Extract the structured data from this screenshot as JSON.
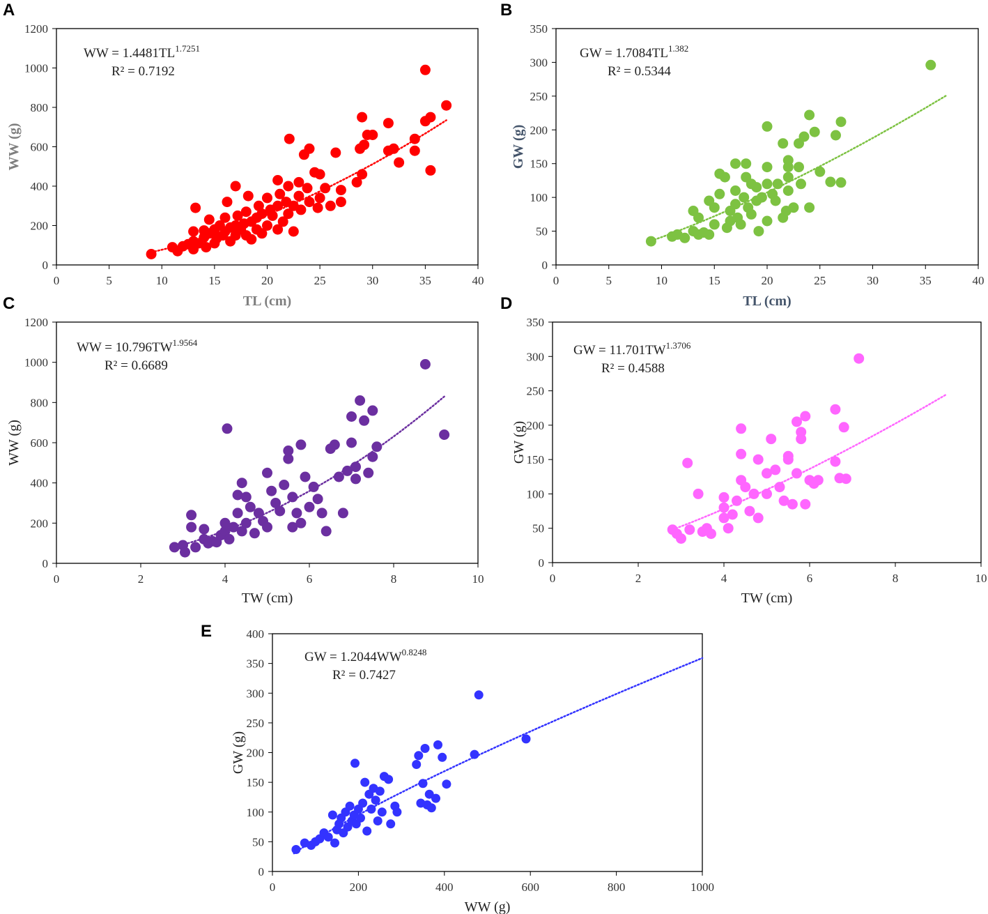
{
  "figure": {
    "panels": [
      "A",
      "B",
      "C",
      "D",
      "E"
    ]
  },
  "chart_data": [
    {
      "panel": "A",
      "type": "scatter",
      "color": "#ff0000",
      "title": "",
      "xlabel": "TL (cm)",
      "ylabel": "WW (g)",
      "xlim": [
        0,
        40
      ],
      "ylim": [
        0,
        1200
      ],
      "xticks": [
        0,
        5,
        10,
        15,
        20,
        25,
        30,
        35,
        40
      ],
      "yticks": [
        0,
        200,
        400,
        600,
        800,
        1000,
        1200
      ],
      "equation": {
        "lhs": "WW = 1.4481TL",
        "exp": "1.7251",
        "r2": "R² = 0.7192"
      },
      "fit": {
        "form": "power",
        "a": 1.4481,
        "b": 1.7251,
        "range": [
          9,
          37
        ]
      },
      "points": [
        [
          9,
          55
        ],
        [
          11,
          90
        ],
        [
          11.5,
          70
        ],
        [
          12,
          95
        ],
        [
          12.5,
          105
        ],
        [
          13,
          80
        ],
        [
          13,
          120
        ],
        [
          13,
          170
        ],
        [
          13.2,
          290
        ],
        [
          13.5,
          110
        ],
        [
          14,
          140
        ],
        [
          14,
          175
        ],
        [
          14.2,
          90
        ],
        [
          14.5,
          160
        ],
        [
          14.5,
          230
        ],
        [
          15,
          110
        ],
        [
          15,
          180
        ],
        [
          15.2,
          135
        ],
        [
          15.5,
          200
        ],
        [
          15.8,
          150
        ],
        [
          16,
          170
        ],
        [
          16,
          240
        ],
        [
          16.2,
          320
        ],
        [
          16.5,
          190
        ],
        [
          16.5,
          120
        ],
        [
          17,
          150
        ],
        [
          17,
          200
        ],
        [
          17,
          400
        ],
        [
          17.2,
          250
        ],
        [
          17.5,
          180
        ],
        [
          17.8,
          210
        ],
        [
          18,
          150
        ],
        [
          18,
          270
        ],
        [
          18.2,
          350
        ],
        [
          18.5,
          220
        ],
        [
          18.5,
          130
        ],
        [
          19,
          240
        ],
        [
          19,
          180
        ],
        [
          19.2,
          300
        ],
        [
          19.5,
          260
        ],
        [
          19.5,
          160
        ],
        [
          20,
          200
        ],
        [
          20,
          340
        ],
        [
          20.3,
          280
        ],
        [
          20.5,
          250
        ],
        [
          21,
          180
        ],
        [
          21,
          300
        ],
        [
          21,
          430
        ],
        [
          21.2,
          360
        ],
        [
          21.5,
          220
        ],
        [
          21.8,
          320
        ],
        [
          22,
          260
        ],
        [
          22,
          400
        ],
        [
          22.1,
          640
        ],
        [
          22.5,
          300
        ],
        [
          22.5,
          170
        ],
        [
          23,
          350
        ],
        [
          23,
          420
        ],
        [
          23.2,
          280
        ],
        [
          23.5,
          560
        ],
        [
          23.8,
          390
        ],
        [
          24,
          320
        ],
        [
          24,
          590
        ],
        [
          24.5,
          470
        ],
        [
          24.8,
          290
        ],
        [
          25,
          340
        ],
        [
          25,
          460
        ],
        [
          25.5,
          390
        ],
        [
          26,
          300
        ],
        [
          26.5,
          570
        ],
        [
          27,
          320
        ],
        [
          27,
          380
        ],
        [
          28.5,
          420
        ],
        [
          28.8,
          590
        ],
        [
          29,
          460
        ],
        [
          29,
          750
        ],
        [
          29.2,
          610
        ],
        [
          29.5,
          660
        ],
        [
          30,
          660
        ],
        [
          31.5,
          720
        ],
        [
          31.5,
          580
        ],
        [
          32,
          590
        ],
        [
          32.5,
          520
        ],
        [
          34,
          640
        ],
        [
          34,
          580
        ],
        [
          35,
          730
        ],
        [
          35.5,
          750
        ],
        [
          35.5,
          480
        ],
        [
          35,
          990
        ],
        [
          37,
          810
        ]
      ]
    },
    {
      "panel": "B",
      "type": "scatter",
      "color": "#7dc242",
      "title": "",
      "xlabel": "TL (cm)",
      "ylabel": "GW (g)",
      "xlim": [
        0,
        40
      ],
      "ylim": [
        0,
        350
      ],
      "xticks": [
        0,
        5,
        10,
        15,
        20,
        25,
        30,
        35,
        40
      ],
      "yticks": [
        0,
        50,
        100,
        150,
        200,
        250,
        300,
        350
      ],
      "equation": {
        "lhs": "GW = 1.7084TL",
        "exp": "1.382",
        "r2": "R² = 0.5344"
      },
      "fit": {
        "form": "power",
        "a": 1.7084,
        "b": 1.382,
        "range": [
          9,
          37
        ]
      },
      "points": [
        [
          9,
          35
        ],
        [
          11,
          42
        ],
        [
          11.5,
          45
        ],
        [
          12.2,
          40
        ],
        [
          13,
          50
        ],
        [
          13,
          80
        ],
        [
          13.5,
          70
        ],
        [
          13.5,
          45
        ],
        [
          14,
          48
        ],
        [
          14.5,
          95
        ],
        [
          14.5,
          45
        ],
        [
          15,
          60
        ],
        [
          15,
          85
        ],
        [
          15.5,
          105
        ],
        [
          15.5,
          135
        ],
        [
          16,
          130
        ],
        [
          16.2,
          55
        ],
        [
          16.5,
          80
        ],
        [
          16.5,
          65
        ],
        [
          17,
          150
        ],
        [
          17,
          110
        ],
        [
          17,
          90
        ],
        [
          17.2,
          70
        ],
        [
          17.5,
          60
        ],
        [
          17.8,
          100
        ],
        [
          18,
          150
        ],
        [
          18,
          130
        ],
        [
          18.2,
          85
        ],
        [
          18.5,
          120
        ],
        [
          18.5,
          75
        ],
        [
          19,
          115
        ],
        [
          19,
          95
        ],
        [
          19.2,
          50
        ],
        [
          19.5,
          100
        ],
        [
          20,
          205
        ],
        [
          20,
          145
        ],
        [
          20,
          120
        ],
        [
          20,
          65
        ],
        [
          20.5,
          105
        ],
        [
          20.8,
          95
        ],
        [
          21,
          120
        ],
        [
          21.5,
          180
        ],
        [
          21.5,
          70
        ],
        [
          21.8,
          80
        ],
        [
          22,
          155
        ],
        [
          22,
          145
        ],
        [
          22,
          130
        ],
        [
          22,
          110
        ],
        [
          22.5,
          85
        ],
        [
          23,
          145
        ],
        [
          23,
          180
        ],
        [
          23.2,
          120
        ],
        [
          23.5,
          190
        ],
        [
          24,
          222
        ],
        [
          24,
          85
        ],
        [
          24.5,
          197
        ],
        [
          25,
          138
        ],
        [
          26,
          123
        ],
        [
          26.5,
          192
        ],
        [
          27,
          212
        ],
        [
          27,
          122
        ],
        [
          35.5,
          296
        ]
      ]
    },
    {
      "panel": "C",
      "type": "scatter",
      "color": "#6b2fa0",
      "title": "",
      "xlabel": "TW (cm)",
      "ylabel": "WW (g)",
      "xlim": [
        0,
        10
      ],
      "ylim": [
        0,
        1200
      ],
      "xticks": [
        0,
        2,
        4,
        6,
        8,
        10
      ],
      "yticks": [
        0,
        200,
        400,
        600,
        800,
        1000,
        1200
      ],
      "equation": {
        "lhs": "WW = 10.796TW",
        "exp": "1.9564",
        "r2": "R² = 0.6689"
      },
      "fit": {
        "form": "power",
        "a": 10.796,
        "b": 1.9564,
        "range": [
          2.8,
          9.2
        ]
      },
      "points": [
        [
          2.8,
          80
        ],
        [
          3,
          90
        ],
        [
          3.05,
          55
        ],
        [
          3.2,
          240
        ],
        [
          3.2,
          180
        ],
        [
          3.3,
          80
        ],
        [
          3.5,
          120
        ],
        [
          3.5,
          170
        ],
        [
          3.6,
          100
        ],
        [
          3.7,
          110
        ],
        [
          3.8,
          105
        ],
        [
          3.9,
          140
        ],
        [
          4,
          160
        ],
        [
          4,
          200
        ],
        [
          4.05,
          670
        ],
        [
          4.1,
          120
        ],
        [
          4.2,
          180
        ],
        [
          4.3,
          340
        ],
        [
          4.3,
          250
        ],
        [
          4.4,
          400
        ],
        [
          4.4,
          160
        ],
        [
          4.5,
          200
        ],
        [
          4.5,
          330
        ],
        [
          4.6,
          280
        ],
        [
          4.7,
          150
        ],
        [
          4.8,
          250
        ],
        [
          4.9,
          210
        ],
        [
          5,
          180
        ],
        [
          5,
          450
        ],
        [
          5.1,
          360
        ],
        [
          5.2,
          300
        ],
        [
          5.3,
          260
        ],
        [
          5.4,
          390
        ],
        [
          5.5,
          520
        ],
        [
          5.5,
          560
        ],
        [
          5.6,
          180
        ],
        [
          5.6,
          330
        ],
        [
          5.7,
          250
        ],
        [
          5.8,
          590
        ],
        [
          5.8,
          200
        ],
        [
          5.9,
          430
        ],
        [
          6,
          280
        ],
        [
          6.1,
          380
        ],
        [
          6.2,
          320
        ],
        [
          6.3,
          250
        ],
        [
          6.4,
          160
        ],
        [
          6.5,
          570
        ],
        [
          6.6,
          590
        ],
        [
          6.7,
          430
        ],
        [
          6.8,
          250
        ],
        [
          6.9,
          460
        ],
        [
          7,
          600
        ],
        [
          7,
          730
        ],
        [
          7.1,
          420
        ],
        [
          7.1,
          480
        ],
        [
          7.2,
          810
        ],
        [
          7.3,
          710
        ],
        [
          7.4,
          450
        ],
        [
          7.5,
          760
        ],
        [
          7.5,
          530
        ],
        [
          7.6,
          580
        ],
        [
          8.75,
          990
        ],
        [
          9.2,
          640
        ]
      ]
    },
    {
      "panel": "D",
      "type": "scatter",
      "color": "#ff66ff",
      "title": "",
      "xlabel": "TW (cm)",
      "ylabel": "GW (g)",
      "xlim": [
        0,
        10
      ],
      "ylim": [
        0,
        350
      ],
      "xticks": [
        0,
        2,
        4,
        6,
        8,
        10
      ],
      "yticks": [
        0,
        50,
        100,
        150,
        200,
        250,
        300,
        350
      ],
      "equation": {
        "lhs": "GW = 11.701TW",
        "exp": "1.3706",
        "r2": "R² = 0.4588"
      },
      "fit": {
        "form": "power",
        "a": 11.701,
        "b": 1.3706,
        "range": [
          2.8,
          9.2
        ]
      },
      "points": [
        [
          2.8,
          48
        ],
        [
          2.9,
          42
        ],
        [
          3,
          35
        ],
        [
          3.15,
          145
        ],
        [
          3.2,
          48
        ],
        [
          3.4,
          100
        ],
        [
          3.5,
          45
        ],
        [
          3.6,
          50
        ],
        [
          3.7,
          42
        ],
        [
          4,
          65
        ],
        [
          4,
          95
        ],
        [
          4,
          80
        ],
        [
          4.1,
          50
        ],
        [
          4.2,
          70
        ],
        [
          4.3,
          90
        ],
        [
          4.4,
          120
        ],
        [
          4.4,
          195
        ],
        [
          4.4,
          158
        ],
        [
          4.5,
          110
        ],
        [
          4.6,
          75
        ],
        [
          4.7,
          100
        ],
        [
          4.8,
          150
        ],
        [
          4.8,
          65
        ],
        [
          5,
          100
        ],
        [
          5,
          130
        ],
        [
          5.1,
          180
        ],
        [
          5.2,
          135
        ],
        [
          5.3,
          110
        ],
        [
          5.4,
          90
        ],
        [
          5.5,
          150
        ],
        [
          5.5,
          155
        ],
        [
          5.6,
          85
        ],
        [
          5.7,
          205
        ],
        [
          5.7,
          130
        ],
        [
          5.8,
          190
        ],
        [
          5.8,
          180
        ],
        [
          5.9,
          85
        ],
        [
          5.9,
          213
        ],
        [
          6,
          120
        ],
        [
          6.1,
          115
        ],
        [
          6.2,
          120
        ],
        [
          6.6,
          223
        ],
        [
          6.6,
          147
        ],
        [
          6.7,
          123
        ],
        [
          6.8,
          197
        ],
        [
          6.85,
          122
        ],
        [
          7.15,
          297
        ]
      ]
    },
    {
      "panel": "E",
      "type": "scatter",
      "color": "#3333ff",
      "title": "",
      "xlabel": "WW (g)",
      "ylabel": "GW (g)",
      "xlim": [
        0,
        1000
      ],
      "ylim": [
        0,
        400
      ],
      "xticks": [
        0,
        200,
        400,
        600,
        800,
        1000
      ],
      "yticks": [
        0,
        50,
        100,
        150,
        200,
        250,
        300,
        350,
        400
      ],
      "equation": {
        "lhs": "GW = 1.2044WW",
        "exp": "0.8248",
        "r2": "R² = 0.7427"
      },
      "fit": {
        "form": "power",
        "a": 1.2044,
        "b": 0.8248,
        "range": [
          50,
          1000
        ]
      },
      "points": [
        [
          55,
          37
        ],
        [
          75,
          48
        ],
        [
          90,
          44
        ],
        [
          100,
          50
        ],
        [
          110,
          55
        ],
        [
          120,
          65
        ],
        [
          130,
          58
        ],
        [
          140,
          95
        ],
        [
          145,
          48
        ],
        [
          150,
          70
        ],
        [
          155,
          80
        ],
        [
          160,
          90
        ],
        [
          165,
          65
        ],
        [
          170,
          100
        ],
        [
          175,
          75
        ],
        [
          180,
          110
        ],
        [
          185,
          85
        ],
        [
          190,
          95
        ],
        [
          192,
          182
        ],
        [
          195,
          80
        ],
        [
          200,
          105
        ],
        [
          205,
          90
        ],
        [
          210,
          115
        ],
        [
          215,
          150
        ],
        [
          220,
          68
        ],
        [
          225,
          130
        ],
        [
          230,
          105
        ],
        [
          235,
          140
        ],
        [
          240,
          120
        ],
        [
          245,
          85
        ],
        [
          250,
          135
        ],
        [
          255,
          100
        ],
        [
          260,
          160
        ],
        [
          270,
          155
        ],
        [
          275,
          80
        ],
        [
          285,
          110
        ],
        [
          290,
          100
        ],
        [
          335,
          180
        ],
        [
          340,
          195
        ],
        [
          345,
          115
        ],
        [
          350,
          148
        ],
        [
          355,
          207
        ],
        [
          360,
          112
        ],
        [
          365,
          130
        ],
        [
          370,
          107
        ],
        [
          380,
          123
        ],
        [
          385,
          213
        ],
        [
          395,
          192
        ],
        [
          405,
          147
        ],
        [
          470,
          197
        ],
        [
          480,
          297
        ],
        [
          590,
          223
        ]
      ]
    }
  ]
}
